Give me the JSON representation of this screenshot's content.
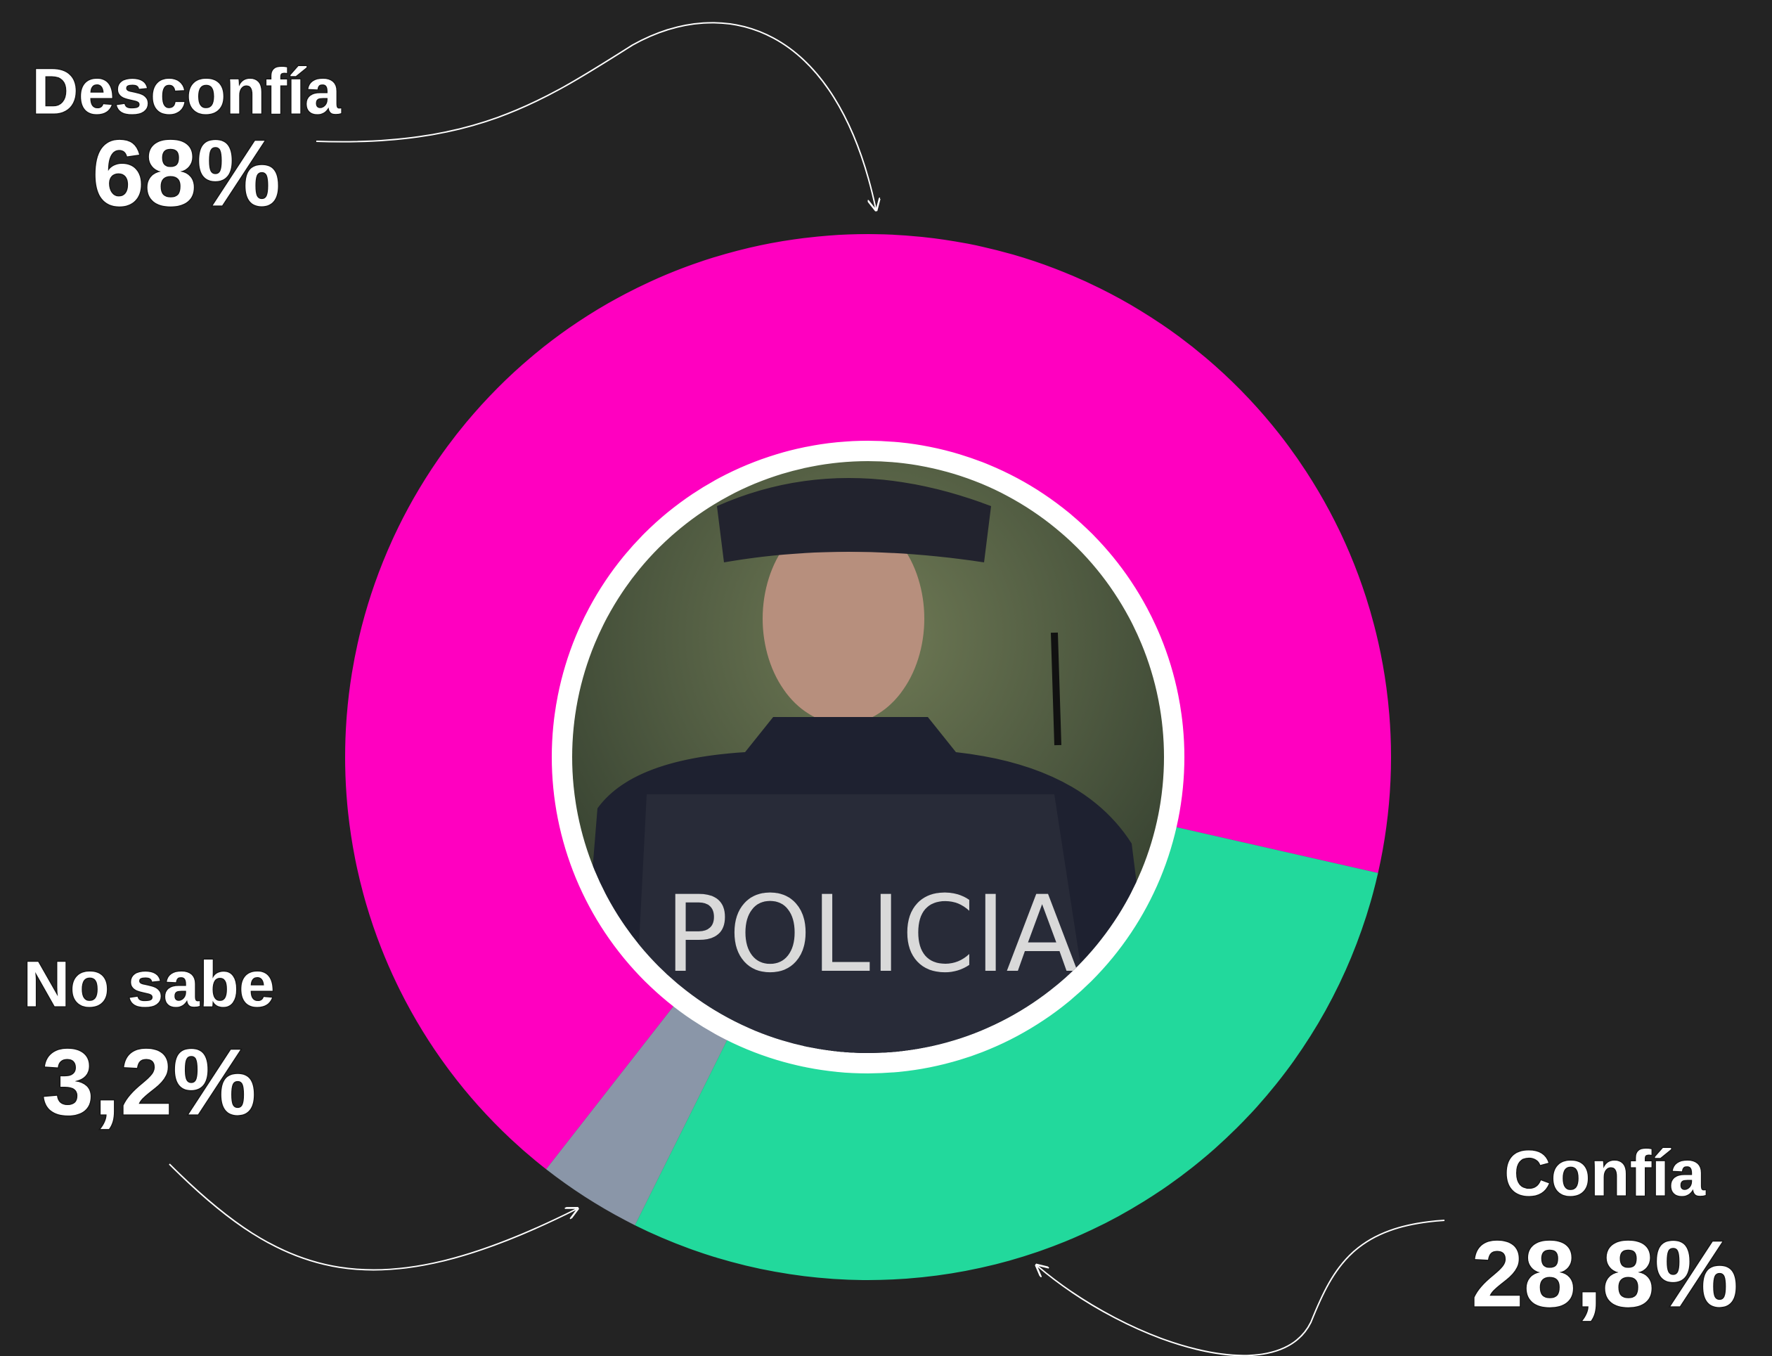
{
  "chart_data": {
    "type": "donut",
    "categories": [
      "Desconfía",
      "Confía",
      "No sabe"
    ],
    "values": [
      68,
      28.8,
      3.2
    ],
    "value_labels": [
      "68%",
      "28,8%",
      "3,2%"
    ],
    "colors": [
      "#ff00c0",
      "#22d99c",
      "#8a96a8"
    ],
    "center_image_text": "POLICIA"
  }
}
